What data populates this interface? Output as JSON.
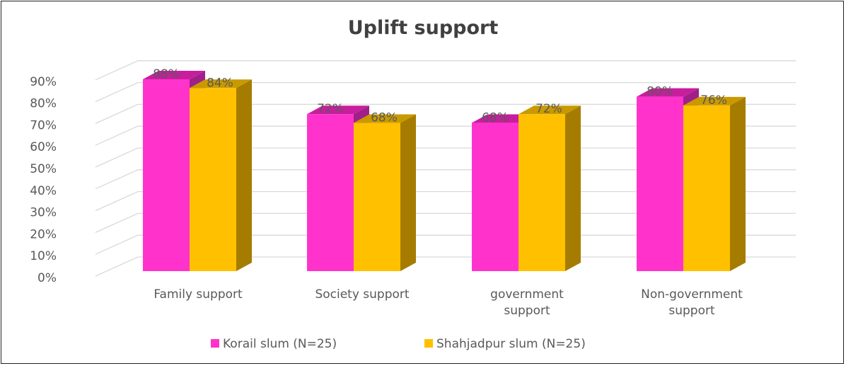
{
  "chart_data": {
    "type": "bar",
    "title": "Uplift support",
    "categories": [
      [
        "Family support"
      ],
      [
        "Society support"
      ],
      [
        "government",
        "support"
      ],
      [
        "Non-government",
        "support"
      ]
    ],
    "series": [
      {
        "name": "Korail slum  (N=25)",
        "values": [
          88,
          72,
          68,
          80
        ],
        "color": "#FF33CC",
        "top_color": "#C81E9E"
      },
      {
        "name": "Shahjadpur slum (N=25)",
        "values": [
          84,
          68,
          72,
          76
        ],
        "color": "#FFC000",
        "side_color": "#A67C00"
      }
    ],
    "ylim": [
      0,
      90
    ],
    "yticks": [
      0,
      10,
      20,
      30,
      40,
      50,
      60,
      70,
      80,
      90
    ],
    "ytick_format": "%",
    "grid": true,
    "legend": "bottom",
    "style": "3d-column"
  }
}
